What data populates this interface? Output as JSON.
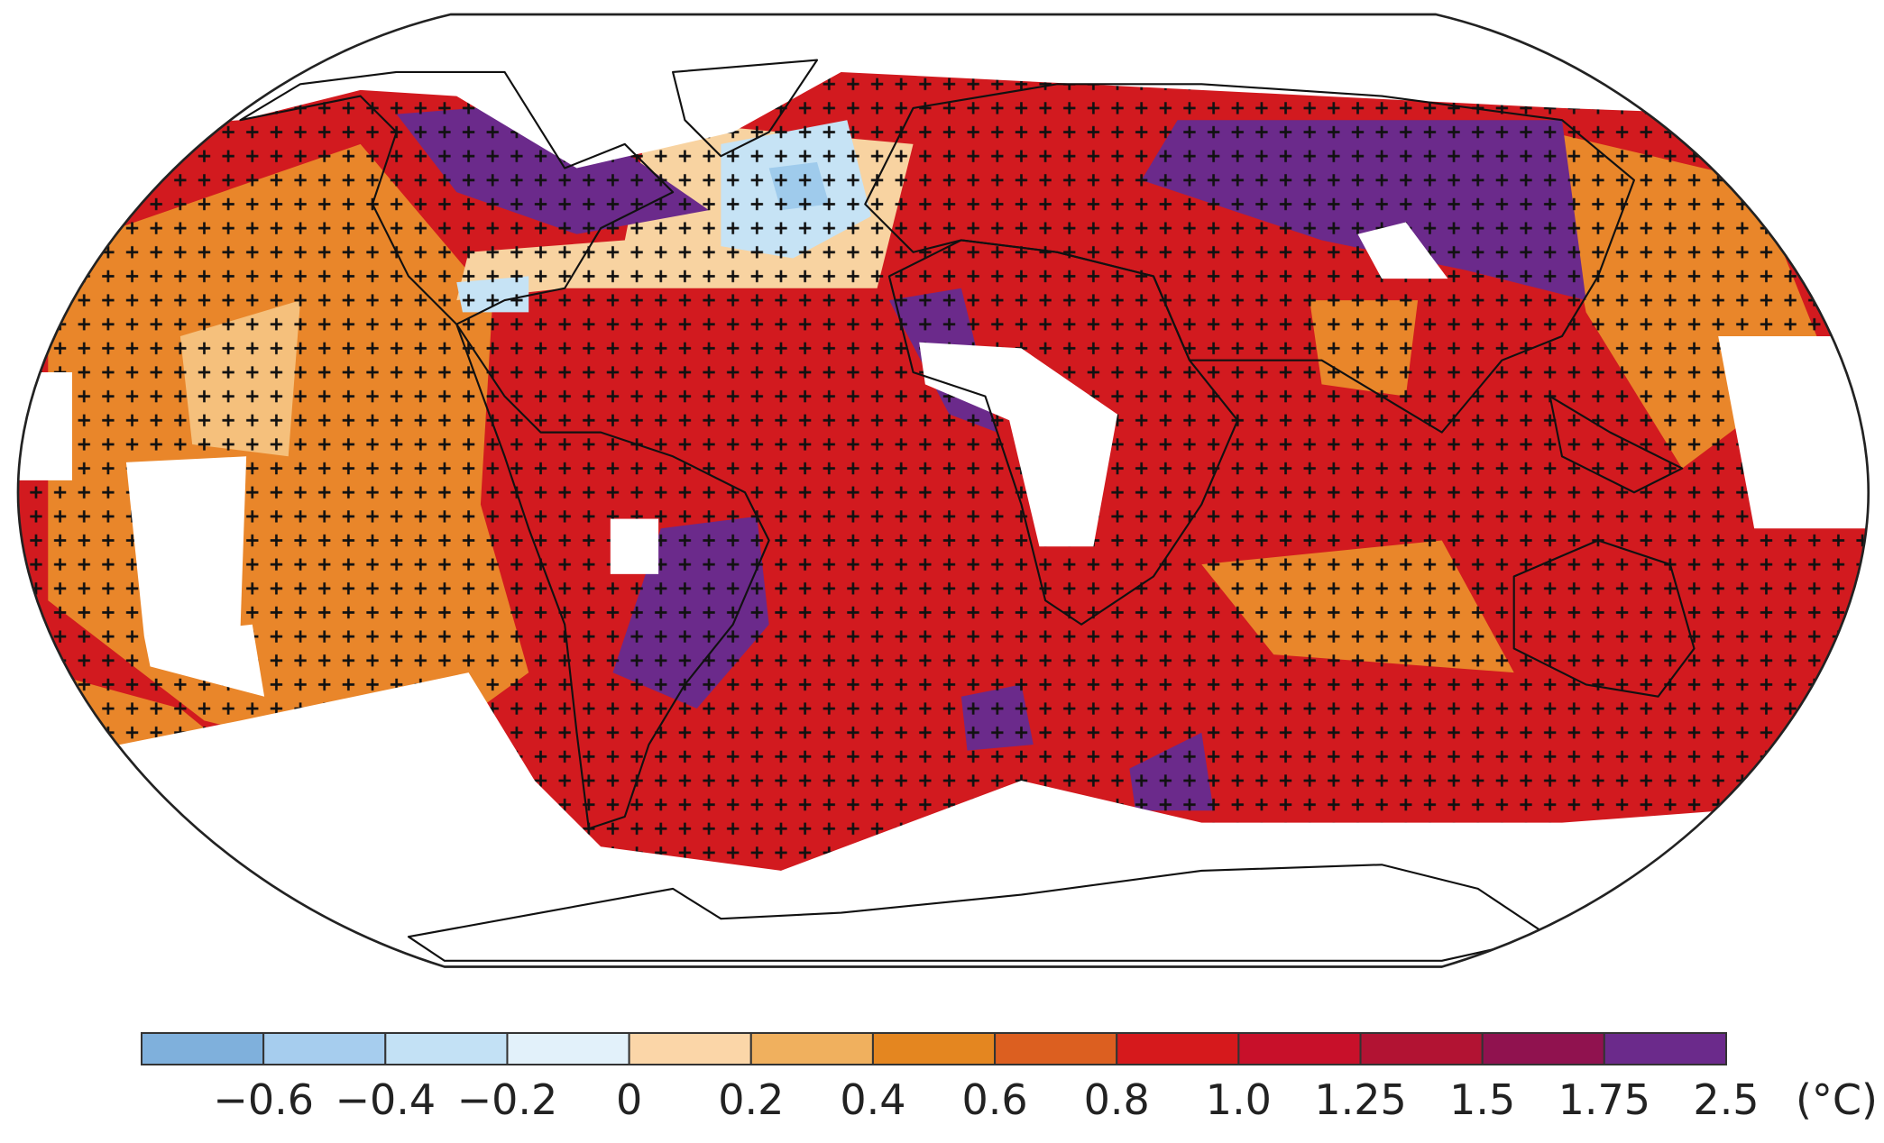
{
  "colorbar": {
    "boundaries": [
      null,
      {
        "value": -0.6,
        "label": "−0.6"
      },
      {
        "value": -0.4,
        "label": "−0.4"
      },
      {
        "value": -0.2,
        "label": "−0.2"
      },
      0,
      0.2,
      0.4,
      0.6,
      0.8,
      {
        "value": 1.0,
        "label": "1.0"
      },
      1.25,
      1.5,
      1.75,
      2.5
    ],
    "colors": [
      "#7fb0dc",
      "#a6cdee",
      "#c3e1f5",
      "#e2f1fa",
      "#fbd6a8",
      "#f0b05e",
      "#e48620",
      "#dc5f20",
      "#d6191c",
      "#c8102a",
      "#b21333",
      "#90124f",
      "#6b2a8b"
    ],
    "unit": "(°C)"
  }
}
